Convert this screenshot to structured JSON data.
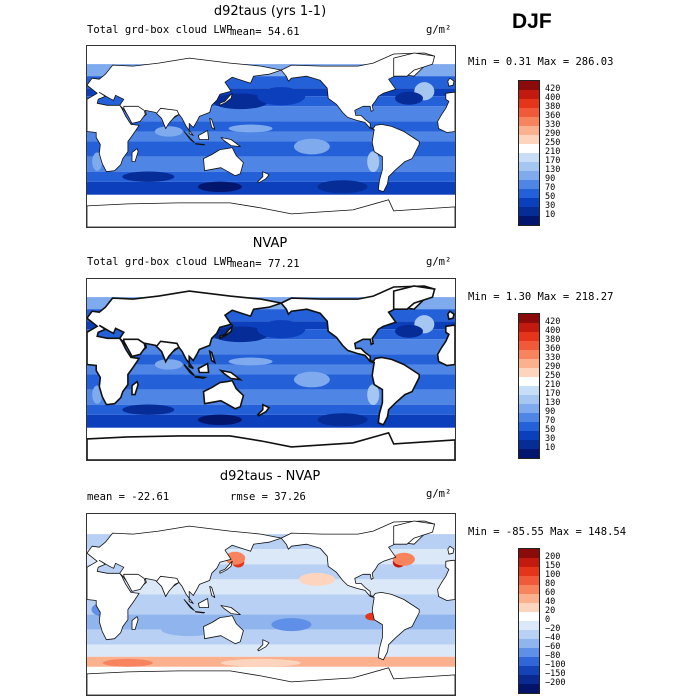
{
  "season": "DJF",
  "units": "g/m²",
  "panels": [
    {
      "title": "d92taus (yrs 1-1)",
      "variable": "Total grd-box cloud LWP",
      "stat1": "mean=  54.61",
      "stat2": "",
      "minmax": "Min =    0.31 Max = 286.03",
      "colorbar": {
        "labels": [
          "420",
          "400",
          "380",
          "360",
          "330",
          "290",
          "250",
          "210",
          "170",
          "130",
          "90",
          "70",
          "50",
          "30",
          "10"
        ],
        "colors": [
          "#8b0a0a",
          "#c21a0e",
          "#e4341a",
          "#f05a3a",
          "#f7835f",
          "#fbb08e",
          "#fdd5bf",
          "#ffffff",
          "#c8ddf6",
          "#a6c6f2",
          "#7faaee",
          "#4f86e6",
          "#2460d8",
          "#0c3fbc",
          "#062c98",
          "#02166e"
        ]
      },
      "map_shade": "blue",
      "coarse": false
    },
    {
      "title": "NVAP",
      "variable": "Total grd-box cloud LWP",
      "stat1": "mean=  77.21",
      "stat2": "",
      "minmax": "Min =    1.30 Max = 218.27",
      "colorbar": {
        "labels": [
          "420",
          "400",
          "380",
          "360",
          "330",
          "290",
          "250",
          "210",
          "170",
          "130",
          "90",
          "70",
          "50",
          "30",
          "10"
        ],
        "colors": [
          "#8b0a0a",
          "#c21a0e",
          "#e4341a",
          "#f05a3a",
          "#f7835f",
          "#fbb08e",
          "#fdd5bf",
          "#ffffff",
          "#c8ddf6",
          "#a6c6f2",
          "#7faaee",
          "#4f86e6",
          "#2460d8",
          "#0c3fbc",
          "#062c98",
          "#02166e"
        ]
      },
      "map_shade": "blue",
      "coarse": true
    },
    {
      "title": "d92taus - NVAP",
      "variable": "",
      "stat1": "mean = -22.61",
      "stat2": "rmse =  37.26",
      "minmax": "Min = -85.55 Max = 148.54",
      "colorbar": {
        "labels": [
          "200",
          "150",
          "100",
          "80",
          "60",
          "40",
          "20",
          "0",
          "−20",
          "−40",
          "−60",
          "−80",
          "−100",
          "−150",
          "−200"
        ],
        "colors": [
          "#8b0a0a",
          "#c21a0e",
          "#e4341a",
          "#f05a3a",
          "#f7835f",
          "#fbb08e",
          "#fdd5bf",
          "#ffffff",
          "#dbe8f8",
          "#b8d0f3",
          "#8fb4ee",
          "#5f8fe6",
          "#3166d8",
          "#1443b8",
          "#0a2a92",
          "#03136a"
        ]
      },
      "map_shade": "diff",
      "coarse": false
    }
  ]
}
